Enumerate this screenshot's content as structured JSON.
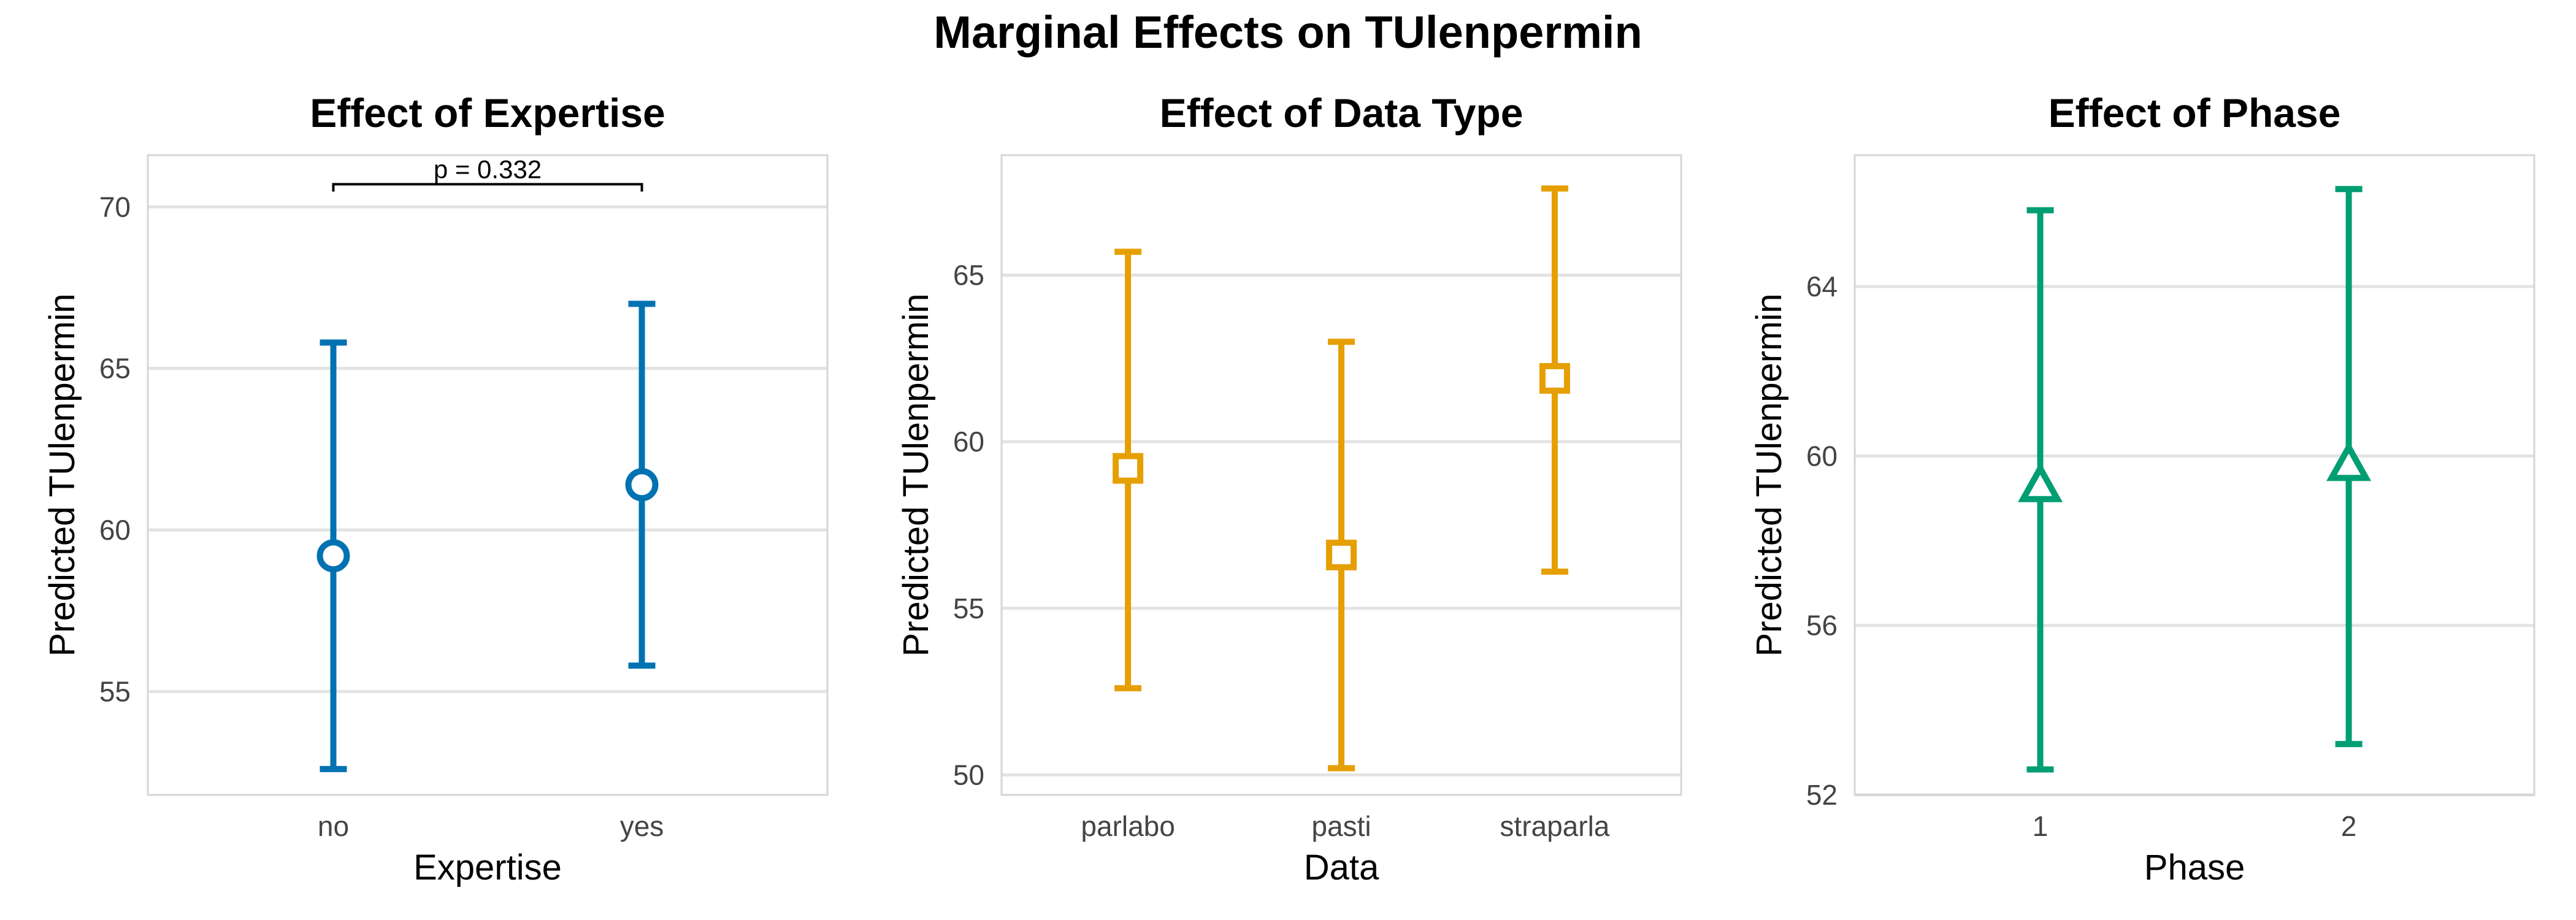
{
  "figure": {
    "title": "Marginal Effects on TUlenpermin"
  },
  "chart_data": [
    {
      "type": "scatter",
      "title": "Effect of Expertise",
      "xlabel": "Expertise",
      "ylabel": "Predicted TUlenpermin",
      "categories": [
        "no",
        "yes"
      ],
      "series": [
        {
          "estimate": [
            59.2,
            61.4
          ],
          "lower": [
            52.6,
            55.8
          ],
          "upper": [
            65.8,
            67.0
          ]
        }
      ],
      "ylim": [
        51.8,
        71.6
      ],
      "yticks": [
        55,
        60,
        65,
        70
      ],
      "marker": "circle",
      "color": "#0072B2",
      "grid": true,
      "annotations": [
        {
          "text": "p = 0.332",
          "from": "no",
          "to": "yes",
          "y": 70.7
        }
      ]
    },
    {
      "type": "scatter",
      "title": "Effect of Data Type",
      "xlabel": "Data",
      "ylabel": "Predicted TUlenpermin",
      "categories": [
        "parlabo",
        "pasti",
        "straparla"
      ],
      "series": [
        {
          "estimate": [
            59.2,
            56.6,
            61.9
          ],
          "lower": [
            52.6,
            50.2,
            56.1
          ],
          "upper": [
            65.7,
            63.0,
            67.6
          ]
        }
      ],
      "ylim": [
        49.4,
        68.6
      ],
      "yticks": [
        50,
        55,
        60,
        65
      ],
      "marker": "square",
      "color": "#E69F00",
      "grid": true,
      "annotations": []
    },
    {
      "type": "scatter",
      "title": "Effect of Phase",
      "xlabel": "Phase",
      "ylabel": "Predicted TUlenpermin",
      "categories": [
        "1",
        "2"
      ],
      "series": [
        {
          "estimate": [
            59.3,
            59.8
          ],
          "lower": [
            52.6,
            53.2
          ],
          "upper": [
            65.8,
            66.3
          ]
        }
      ],
      "ylim": [
        52.0,
        67.1
      ],
      "yticks": [
        52,
        56,
        60,
        64
      ],
      "marker": "triangle",
      "color": "#009E73",
      "grid": true,
      "annotations": []
    }
  ]
}
